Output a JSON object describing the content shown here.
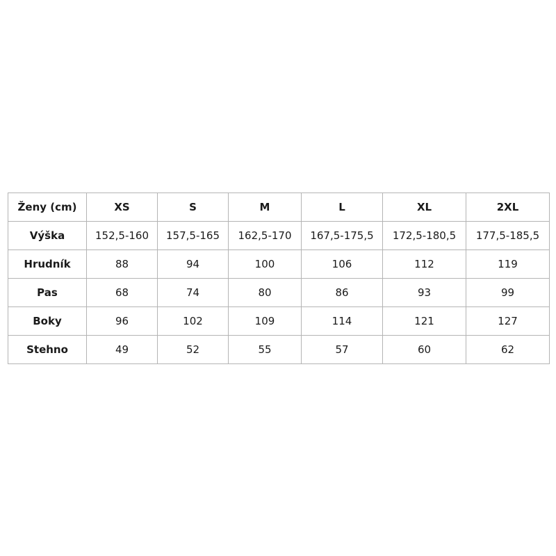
{
  "chart_data": {
    "type": "table",
    "title": "Ženy (cm)",
    "columns": [
      "Ženy (cm)",
      "XS",
      "S",
      "M",
      "L",
      "XL",
      "2XL"
    ],
    "rows": [
      {
        "label": "Výška",
        "values": [
          "152,5-160",
          "157,5-165",
          "162,5-170",
          "167,5-175,5",
          "172,5-180,5",
          "177,5-185,5"
        ]
      },
      {
        "label": "Hrudník",
        "values": [
          "88",
          "94",
          "100",
          "106",
          "112",
          "119"
        ]
      },
      {
        "label": "Pas",
        "values": [
          "68",
          "74",
          "80",
          "86",
          "93",
          "99"
        ]
      },
      {
        "label": "Boky",
        "values": [
          "96",
          "102",
          "109",
          "114",
          "121",
          "127"
        ]
      },
      {
        "label": "Stehno",
        "values": [
          "49",
          "52",
          "55",
          "57",
          "60",
          "62"
        ]
      }
    ],
    "colors": {
      "border": "#b4b4b4",
      "text": "#1a1a1a",
      "background": "#ffffff"
    }
  }
}
